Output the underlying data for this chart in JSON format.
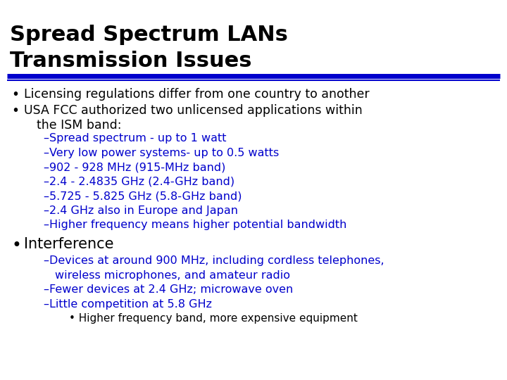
{
  "title_line1": "Spread Spectrum LANs",
  "title_line2": "Transmission Issues",
  "title_fontsize": 22,
  "title_color": "#000000",
  "title_font_weight": "bold",
  "rule_color": "#0000CC",
  "background_color": "#FFFFFF",
  "bullet_color": "#000000",
  "text_color": "#000000",
  "sub_text_color": "#0000CC",
  "bullet1": "Licensing regulations differ from one country to another",
  "bullet2_line1": "USA FCC authorized two unlicensed applications within",
  "bullet2_line2": "the ISM band:",
  "sub_items": [
    "–Spread spectrum - up to 1 watt",
    "–Very low power systems- up to 0.5 watts",
    "–902 - 928 MHz (915-MHz band)",
    "–2.4 - 2.4835 GHz (2.4-GHz band)",
    "–5.725 - 5.825 GHz (5.8-GHz band)",
    "–2.4 GHz also in Europe and Japan",
    "–Higher frequency means higher potential bandwidth"
  ],
  "bullet3": "Interference",
  "sub_items2_line1": "–Devices at around 900 MHz, including cordless telephones,",
  "sub_items2_line1b": "   wireless microphones, and amateur radio",
  "sub_items2_line2": "–Fewer devices at 2.4 GHz; microwave oven",
  "sub_items2_line3": "–Little competition at 5.8 GHz",
  "sub_sub_item": "• Higher frequency band, more expensive equipment",
  "main_fontsize": 12.5,
  "sub_fontsize": 11.5,
  "interference_fontsize": 15,
  "sub_sub_fontsize": 11
}
